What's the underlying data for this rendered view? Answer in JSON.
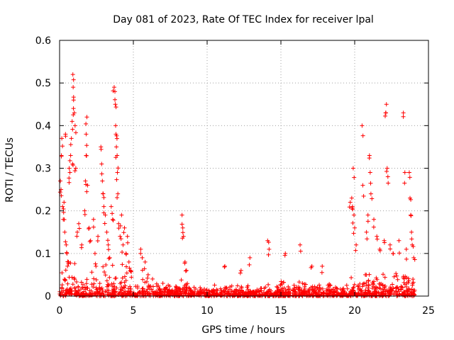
{
  "chart_data": {
    "type": "scatter",
    "title": "Day 081 of 2023, Rate Of TEC Index for receiver lpal",
    "xlabel": "GPS time / hours",
    "ylabel": "ROTI / TECUs",
    "xlim": [
      0,
      25
    ],
    "ylim": [
      0,
      0.6
    ],
    "xticks": [
      0,
      5,
      10,
      15,
      20,
      25
    ],
    "xtick_labels": [
      "0",
      "5",
      "10",
      "15",
      "20",
      "25"
    ],
    "yticks": [
      0,
      0.1,
      0.2,
      0.3,
      0.4,
      0.5,
      0.6
    ],
    "ytick_labels": [
      "0",
      "0.1",
      "0.2",
      "0.3",
      "0.4",
      "0.5",
      "0.6"
    ],
    "grid": true,
    "marker": "plus",
    "series": [
      {
        "name": "ROTI",
        "color": "#ff0000",
        "points": [
          [
            0.05,
            0.27
          ],
          [
            0.1,
            0.25
          ],
          [
            0.12,
            0.33
          ],
          [
            0.15,
            0.37
          ],
          [
            0.2,
            0.21
          ],
          [
            0.25,
            0.18
          ],
          [
            0.3,
            0.22
          ],
          [
            0.35,
            0.15
          ],
          [
            0.4,
            0.38
          ],
          [
            0.45,
            0.12
          ],
          [
            0.5,
            0.1
          ],
          [
            0.6,
            0.08
          ],
          [
            0.65,
            0.3
          ],
          [
            0.7,
            0.29
          ],
          [
            0.75,
            0.33
          ],
          [
            0.8,
            0.37
          ],
          [
            0.85,
            0.41
          ],
          [
            0.9,
            0.52
          ],
          [
            0.92,
            0.49
          ],
          [
            0.95,
            0.46
          ],
          [
            1.0,
            0.43
          ],
          [
            1.05,
            0.4
          ],
          [
            0.88,
            0.31
          ],
          [
            1.1,
            0.3
          ],
          [
            1.2,
            0.15
          ],
          [
            1.3,
            0.17
          ],
          [
            1.5,
            0.12
          ],
          [
            1.7,
            0.2
          ],
          [
            1.75,
            0.27
          ],
          [
            1.8,
            0.33
          ],
          [
            1.8,
            0.38
          ],
          [
            1.85,
            0.42
          ],
          [
            1.9,
            0.26
          ],
          [
            2.0,
            0.16
          ],
          [
            2.1,
            0.13
          ],
          [
            2.3,
            0.18
          ],
          [
            2.4,
            0.1
          ],
          [
            2.6,
            0.14
          ],
          [
            2.8,
            0.35
          ],
          [
            2.85,
            0.31
          ],
          [
            2.9,
            0.27
          ],
          [
            2.95,
            0.24
          ],
          [
            3.0,
            0.21
          ],
          [
            3.1,
            0.19
          ],
          [
            3.2,
            0.15
          ],
          [
            3.3,
            0.12
          ],
          [
            3.4,
            0.09
          ],
          [
            3.5,
            0.21
          ],
          [
            3.6,
            0.18
          ],
          [
            3.7,
            0.49
          ],
          [
            3.75,
            0.48
          ],
          [
            3.78,
            0.45
          ],
          [
            3.8,
            0.4
          ],
          [
            3.82,
            0.38
          ],
          [
            3.85,
            0.35
          ],
          [
            3.9,
            0.33
          ],
          [
            3.92,
            0.29
          ],
          [
            3.95,
            0.24
          ],
          [
            4.0,
            0.17
          ],
          [
            4.1,
            0.14
          ],
          [
            4.2,
            0.19
          ],
          [
            4.3,
            0.12
          ],
          [
            4.4,
            0.16
          ],
          [
            4.5,
            0.1
          ],
          [
            4.6,
            0.14
          ],
          [
            4.7,
            0.08
          ],
          [
            4.8,
            0.06
          ],
          [
            5.5,
            0.11
          ],
          [
            5.6,
            0.09
          ],
          [
            5.8,
            0.08
          ],
          [
            6.0,
            0.05
          ],
          [
            6.3,
            0.04
          ],
          [
            7.0,
            0.03
          ],
          [
            8.3,
            0.19
          ],
          [
            8.35,
            0.16
          ],
          [
            8.4,
            0.14
          ],
          [
            8.5,
            0.08
          ],
          [
            8.6,
            0.06
          ],
          [
            11.2,
            0.07
          ],
          [
            12.3,
            0.06
          ],
          [
            12.9,
            0.09
          ],
          [
            14.1,
            0.13
          ],
          [
            14.2,
            0.11
          ],
          [
            15.3,
            0.1
          ],
          [
            16.3,
            0.12
          ],
          [
            17.1,
            0.07
          ],
          [
            17.8,
            0.07
          ],
          [
            19.7,
            0.22
          ],
          [
            19.8,
            0.23
          ],
          [
            19.85,
            0.21
          ],
          [
            19.9,
            0.3
          ],
          [
            19.95,
            0.19
          ],
          [
            20.0,
            0.16
          ],
          [
            20.1,
            0.12
          ],
          [
            20.5,
            0.4
          ],
          [
            20.55,
            0.26
          ],
          [
            20.8,
            0.15
          ],
          [
            20.9,
            0.19
          ],
          [
            21.0,
            0.33
          ],
          [
            21.05,
            0.29
          ],
          [
            21.1,
            0.24
          ],
          [
            21.3,
            0.18
          ],
          [
            21.5,
            0.14
          ],
          [
            21.7,
            0.11
          ],
          [
            22.0,
            0.13
          ],
          [
            22.1,
            0.43
          ],
          [
            22.15,
            0.45
          ],
          [
            22.2,
            0.3
          ],
          [
            22.25,
            0.28
          ],
          [
            22.4,
            0.12
          ],
          [
            22.6,
            0.1
          ],
          [
            23.0,
            0.13
          ],
          [
            23.3,
            0.43
          ],
          [
            23.4,
            0.29
          ],
          [
            23.5,
            0.11
          ],
          [
            23.7,
            0.29
          ],
          [
            23.75,
            0.23
          ],
          [
            23.8,
            0.19
          ],
          [
            23.85,
            0.15
          ],
          [
            23.9,
            0.12
          ],
          [
            24.0,
            0.09
          ]
        ]
      }
    ]
  }
}
